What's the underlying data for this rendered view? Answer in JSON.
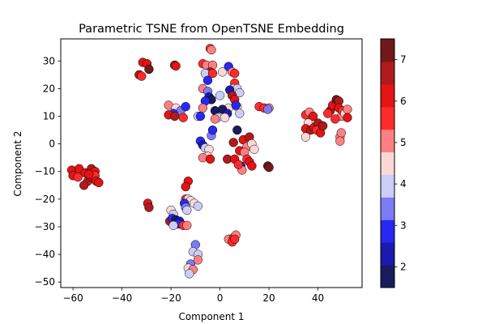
{
  "chart_data": {
    "type": "scatter",
    "title": "Parametric TSNE from OpenTSNE Embedding",
    "xlabel": "Component 1",
    "ylabel": "Component 2",
    "xlim": [
      -65,
      58
    ],
    "ylim": [
      -52,
      38
    ],
    "xticks": [
      -60,
      -40,
      -20,
      0,
      20,
      40
    ],
    "yticks": [
      -50,
      -40,
      -30,
      -20,
      -10,
      0,
      10,
      20,
      30
    ],
    "grid": false,
    "legend": "none",
    "colorbar": {
      "ticks": [
        2,
        3,
        4,
        5,
        6,
        7
      ],
      "range": [
        1.5,
        7.5
      ],
      "bins": [
        "#181b5e",
        "#1a1aae",
        "#2828f2",
        "#7b7bf8",
        "#cdcdfa",
        "#fbd8d8",
        "#ff8080",
        "#ff2b2b",
        "#e41414",
        "#b01a1a",
        "#721818"
      ]
    },
    "points": [
      [
        -31.5,
        29.5,
        6.3
      ],
      [
        -29.8,
        29,
        6.0
      ],
      [
        -33,
        25,
        6.5
      ],
      [
        -32,
        24.5,
        5.8
      ],
      [
        -29,
        27,
        7.0
      ],
      [
        -18.5,
        28.5,
        6.7
      ],
      [
        -18,
        28.2,
        6.2
      ],
      [
        -21,
        14,
        5.1
      ],
      [
        -18,
        13,
        4.4
      ],
      [
        -16,
        12,
        3.2
      ],
      [
        -14,
        13.5,
        2.8
      ],
      [
        -19,
        11,
        3.0
      ],
      [
        -21,
        10.5,
        6.2
      ],
      [
        -18.5,
        10,
        6.8
      ],
      [
        -15,
        9.5,
        5.8
      ],
      [
        -9,
        10,
        4.0
      ],
      [
        -8,
        10,
        3.1
      ],
      [
        -4,
        34.5,
        5.4
      ],
      [
        -3.5,
        34,
        5.2
      ],
      [
        -7,
        29,
        5.7
      ],
      [
        -5.5,
        28.5,
        5.3
      ],
      [
        -3,
        28.5,
        5.1
      ],
      [
        -4,
        26,
        6.5
      ],
      [
        -6,
        25.5,
        4.0
      ],
      [
        -3,
        25.5,
        5.5
      ],
      [
        -5,
        23,
        3.0
      ],
      [
        -7,
        20,
        5.2
      ],
      [
        -5,
        19,
        3.5
      ],
      [
        -4.5,
        17,
        2.5
      ],
      [
        -3.5,
        16,
        1.8
      ],
      [
        -6,
        15.5,
        3.0
      ],
      [
        -2,
        12,
        1.8
      ],
      [
        -1,
        9.5,
        4.0
      ],
      [
        -7,
        13,
        5.3
      ],
      [
        0,
        17.5,
        4.2
      ],
      [
        1,
        26,
        4.5
      ],
      [
        3.5,
        28,
        3.0
      ],
      [
        5,
        26,
        5.0
      ],
      [
        6,
        25.5,
        5.8
      ],
      [
        6,
        22,
        5.6
      ],
      [
        5.5,
        20,
        4.3
      ],
      [
        7,
        20,
        4.1
      ],
      [
        8,
        18.5,
        4.1
      ],
      [
        4,
        19.5,
        2.5
      ],
      [
        5,
        17.5,
        6.7
      ],
      [
        6,
        16,
        6.4
      ],
      [
        3.5,
        13,
        4.3
      ],
      [
        7,
        13.5,
        4.5
      ],
      [
        8,
        11,
        4.2
      ],
      [
        6.5,
        14,
        3.1
      ],
      [
        1,
        12.5,
        1.8
      ],
      [
        3,
        11,
        2.2
      ],
      [
        2,
        9.5,
        4.6
      ],
      [
        -2,
        9,
        5.1
      ],
      [
        -3.5,
        3,
        3.2
      ],
      [
        -3,
        5,
        3.0
      ],
      [
        -8,
        1,
        3.0
      ],
      [
        -7,
        -0.5,
        2.5
      ],
      [
        -6,
        -1.5,
        4.2
      ],
      [
        -4.5,
        -2,
        4.4
      ],
      [
        -5,
        -4.5,
        4.7
      ],
      [
        -7,
        -5,
        4.8
      ],
      [
        -4,
        -5.5,
        5.9
      ],
      [
        7,
        5,
        1.8
      ],
      [
        5.5,
        0.5,
        6.5
      ],
      [
        8,
        -2.5,
        6.4
      ],
      [
        9.5,
        1.5,
        6.3
      ],
      [
        12,
        2.5,
        6.8
      ],
      [
        11,
        -1,
        5.2
      ],
      [
        13,
        0,
        4.5
      ],
      [
        14,
        -2,
        4.3
      ],
      [
        10,
        -3,
        5.2
      ],
      [
        3,
        -5.5,
        6.5
      ],
      [
        6,
        -5.5,
        6.0
      ],
      [
        11,
        -5.5,
        5.5
      ],
      [
        12,
        -6.5,
        6.0
      ],
      [
        8.5,
        -8,
        2.5
      ],
      [
        13,
        -8,
        6.2
      ],
      [
        9,
        -9.5,
        5.3
      ],
      [
        7.5,
        -7.5,
        5.8
      ],
      [
        16,
        13.5,
        5.8
      ],
      [
        18,
        13,
        5.7
      ],
      [
        20,
        13,
        4.9
      ],
      [
        19.5,
        12.5,
        3.5
      ],
      [
        19.5,
        -8,
        7.2
      ],
      [
        20,
        -8.5,
        7.3
      ],
      [
        35,
        10.5,
        5.8
      ],
      [
        36.5,
        11.5,
        5.2
      ],
      [
        38,
        10,
        6.0
      ],
      [
        36,
        7.5,
        4.3
      ],
      [
        35,
        5.5,
        6.0
      ],
      [
        37,
        5,
        6.5
      ],
      [
        38.5,
        6,
        6.2
      ],
      [
        40,
        7.5,
        6.7
      ],
      [
        39.5,
        5,
        5.5
      ],
      [
        41,
        4,
        6.2
      ],
      [
        42,
        6.5,
        6.6
      ],
      [
        45,
        12,
        6.5
      ],
      [
        46,
        14,
        6.0
      ],
      [
        47.5,
        16,
        7.0
      ],
      [
        48.5,
        15.5,
        6.8
      ],
      [
        48.5,
        13,
        6.4
      ],
      [
        49.5,
        10,
        5.1
      ],
      [
        47,
        9,
        5.8
      ],
      [
        50,
        12,
        5.5
      ],
      [
        51,
        11,
        4.5
      ],
      [
        52,
        12.5,
        4.8
      ],
      [
        52,
        9.5,
        6.2
      ],
      [
        49,
        2.5,
        5.2
      ],
      [
        49.5,
        4,
        4.8
      ],
      [
        49,
        1,
        5.1
      ],
      [
        35,
        2.5,
        4.5
      ],
      [
        44,
        11,
        5.5
      ],
      [
        -60.5,
        -9.5,
        5.9
      ],
      [
        -60,
        -11.5,
        6.2
      ],
      [
        -57.5,
        -9,
        6.4
      ],
      [
        -58,
        -12,
        5.8
      ],
      [
        -55,
        -10.5,
        6.1
      ],
      [
        -54,
        -13.5,
        6.4
      ],
      [
        -55.5,
        -15,
        6.6
      ],
      [
        -53,
        -12,
        6.7
      ],
      [
        -52.5,
        -9,
        6.5
      ],
      [
        -51,
        -10,
        6.0
      ],
      [
        -51,
        -11.5,
        5.5
      ],
      [
        -50.5,
        -13.5,
        6.4
      ],
      [
        -49.5,
        -14,
        6.2
      ],
      [
        -53.5,
        -11,
        6.3
      ],
      [
        -29.5,
        -21.5,
        6.0
      ],
      [
        -29,
        -23,
        6.7
      ],
      [
        -13,
        -13.5,
        6.2
      ],
      [
        -14,
        -15.5,
        6.3
      ],
      [
        -14,
        -20,
        5.5
      ],
      [
        -13,
        -20,
        4.3
      ],
      [
        -12,
        -20.5,
        4.6
      ],
      [
        -10.5,
        -21.5,
        4.5
      ],
      [
        -14.5,
        -21.5,
        3.0
      ],
      [
        -14,
        -23,
        3.5
      ],
      [
        -9,
        -22.5,
        4.0
      ],
      [
        -13.5,
        -24,
        4.1
      ],
      [
        -20,
        -24,
        4.5
      ],
      [
        -19,
        -25.5,
        4.0
      ],
      [
        -20.5,
        -28,
        6.5
      ],
      [
        -19.5,
        -27,
        3.0
      ],
      [
        -18,
        -27.5,
        1.8
      ],
      [
        -16.5,
        -28,
        2.2
      ],
      [
        -17,
        -29,
        2.8
      ],
      [
        -19,
        -29.5,
        3.8
      ],
      [
        -15,
        -29.5,
        5.5
      ],
      [
        -13.5,
        -29.5,
        5.0
      ],
      [
        -10,
        -36.5,
        3.5
      ],
      [
        -11,
        -39,
        4.2
      ],
      [
        -9,
        -40,
        4.0
      ],
      [
        -9,
        -42,
        5.0
      ],
      [
        -12,
        -43.5,
        3.2
      ],
      [
        -13,
        -45,
        4.3
      ],
      [
        -11,
        -45.5,
        5.1
      ],
      [
        -12.5,
        -47,
        4.1
      ],
      [
        3.5,
        -34.5,
        5.2
      ],
      [
        5.5,
        -34,
        5.5
      ],
      [
        6.5,
        -33,
        5.0
      ],
      [
        5,
        -35.5,
        5.6
      ],
      [
        6,
        -34.5,
        5.8
      ]
    ]
  }
}
